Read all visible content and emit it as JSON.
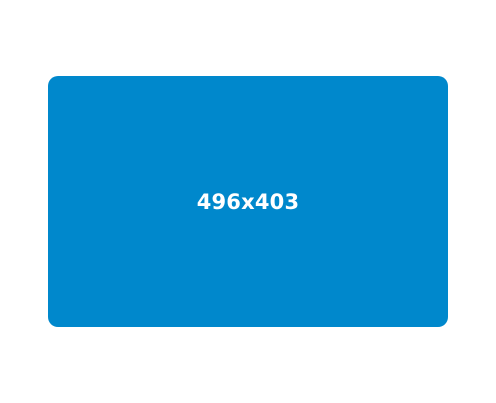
{
  "placeholder": {
    "label": "496x403",
    "background_color": "#0088cc",
    "text_color": "#ffffff"
  },
  "page": {
    "background_color": "#ffffff"
  }
}
